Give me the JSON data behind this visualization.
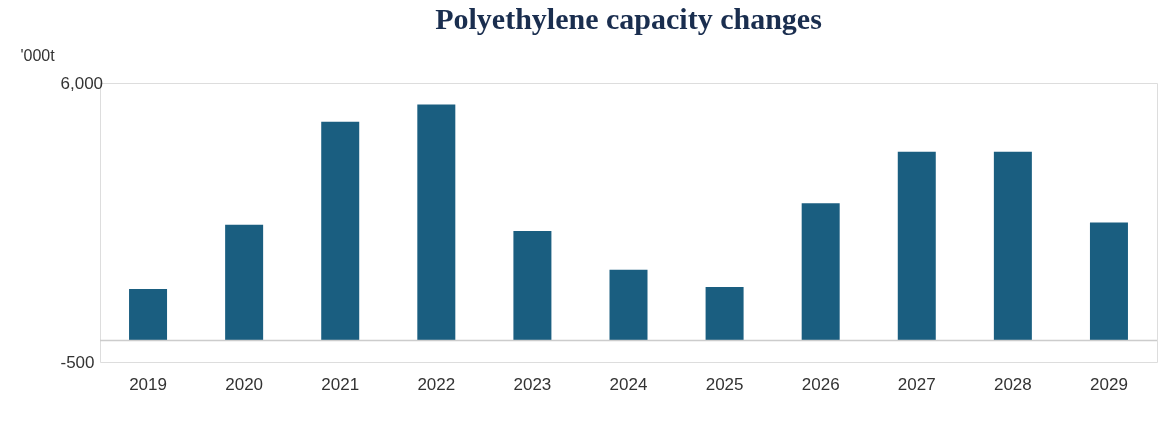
{
  "chart_data": {
    "type": "bar",
    "title": "Polyethylene capacity changes",
    "ylabel": "'000t",
    "categories": [
      "2019",
      "2020",
      "2021",
      "2022",
      "2023",
      "2024",
      "2025",
      "2026",
      "2027",
      "2028",
      "2029"
    ],
    "values": [
      1200,
      2700,
      5100,
      5500,
      2550,
      1650,
      1250,
      3200,
      4400,
      4400,
      2750
    ],
    "color": "#1a5e80",
    "ylim": [
      -500,
      6000
    ],
    "yticks": [
      {
        "value": -500,
        "label": "-500"
      },
      {
        "value": 6000,
        "label": "6,000"
      }
    ],
    "ref_lines": [
      {
        "axis": "y",
        "value": 0,
        "label": null,
        "color": "#cccccc"
      }
    ],
    "grid": false
  }
}
